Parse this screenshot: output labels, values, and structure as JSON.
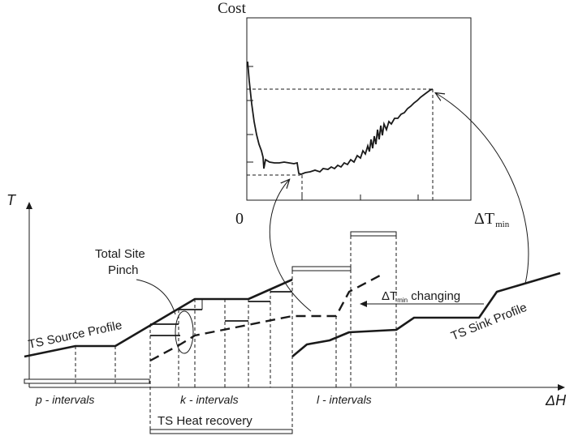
{
  "cost_plot": {
    "y_label": "Cost",
    "origin_label": "0",
    "x_label_main": "ΔT",
    "x_label_sub": "min"
  },
  "main_plot": {
    "y_label": "T",
    "x_label": "ΔH",
    "source_profile_label": "TS Source Profile",
    "sink_profile_label": "TS Sink Profile",
    "pinch_label_line1": "Total Site",
    "pinch_label_line2": "Pinch",
    "changing_label_pre": "ΔT",
    "changing_label_sub": "min",
    "changing_label_post": " changing",
    "p_intervals_label": "p - intervals",
    "k_intervals_label": "k - intervals",
    "l_intervals_label": "l - intervals",
    "heat_recovery_label": "TS Heat recovery"
  }
}
